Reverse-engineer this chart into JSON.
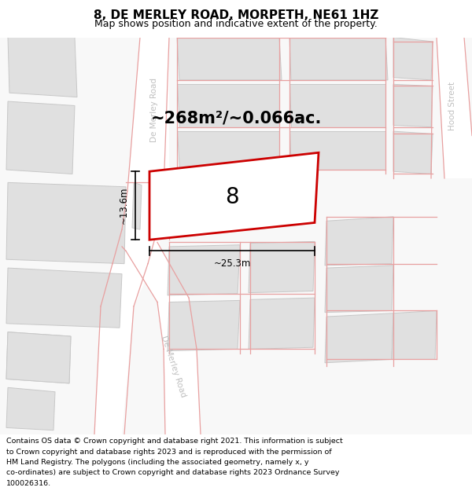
{
  "title": "8, DE MERLEY ROAD, MORPETH, NE61 1HZ",
  "subtitle": "Map shows position and indicative extent of the property.",
  "footer_lines": [
    "Contains OS data © Crown copyright and database right 2021. This information is subject",
    "to Crown copyright and database rights 2023 and is reproduced with the permission of",
    "HM Land Registry. The polygons (including the associated geometry, namely x, y",
    "co-ordinates) are subject to Crown copyright and database rights 2023 Ordnance Survey",
    "100026316."
  ],
  "area_label": "~268m²/~0.066ac.",
  "width_label": "~25.3m",
  "height_label": "~13.6m",
  "plot_number": "8",
  "road_line_color": "#e8a0a0",
  "building_fill": "#e0e0e0",
  "building_edge": "#c8c8c8",
  "plot_fill": "#ffffff",
  "plot_edge": "#cc0000",
  "plot_edge_width": 2.0,
  "road_label_color": "#c0c0c0",
  "title_fontsize": 11,
  "subtitle_fontsize": 9,
  "footer_fontsize": 6.8,
  "area_fontsize": 15,
  "number_fontsize": 20
}
